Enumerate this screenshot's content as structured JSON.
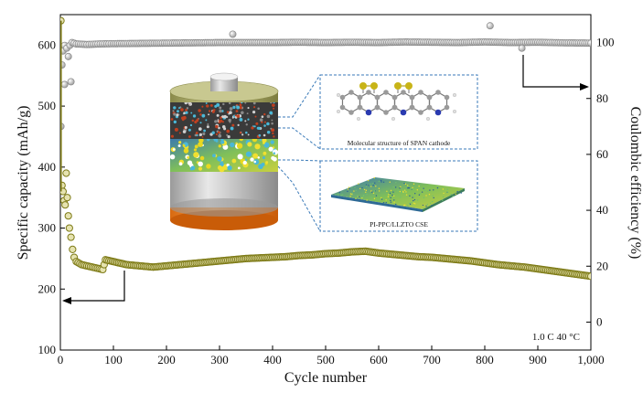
{
  "chart_data": {
    "type": "scatter",
    "xlabel": "Cycle number",
    "ylabel": "Specific capacity (mAh/g)",
    "y2label": "Coulombic efficiency (%)",
    "xlim": [
      0,
      1000
    ],
    "ylim": [
      100,
      650
    ],
    "y2lim": [
      -10,
      110
    ],
    "x_ticks": [
      "0",
      "100",
      "200",
      "300",
      "400",
      "500",
      "600",
      "700",
      "800",
      "900",
      "1,000"
    ],
    "y_ticks": [
      "100",
      "200",
      "300",
      "400",
      "500",
      "600"
    ],
    "y2_ticks": [
      "0",
      "20",
      "40",
      "60",
      "80",
      "100"
    ],
    "condition": "1.0 C 40 °C",
    "series": [
      {
        "metric": "capacity",
        "axis": "left",
        "color": "#7d7a16",
        "values": [
          [
            1,
            640
          ],
          [
            3,
            370
          ],
          [
            5,
            360
          ],
          [
            7,
            345
          ],
          [
            9,
            338
          ],
          [
            11,
            390
          ],
          [
            13,
            350
          ],
          [
            15,
            320
          ],
          [
            17,
            300
          ],
          [
            20,
            285
          ],
          [
            23,
            265
          ],
          [
            26,
            252
          ],
          [
            30,
            245
          ],
          [
            40,
            240
          ],
          [
            50,
            238
          ],
          [
            60,
            236
          ],
          [
            70,
            234
          ],
          [
            80,
            232
          ],
          [
            85,
            248
          ],
          [
            95,
            246
          ],
          [
            110,
            243
          ],
          [
            125,
            240
          ],
          [
            150,
            238
          ],
          [
            175,
            236
          ],
          [
            200,
            238
          ],
          [
            225,
            240
          ],
          [
            250,
            242
          ],
          [
            275,
            244
          ],
          [
            300,
            246
          ],
          [
            325,
            248
          ],
          [
            350,
            250
          ],
          [
            375,
            251
          ],
          [
            400,
            252
          ],
          [
            425,
            253
          ],
          [
            450,
            255
          ],
          [
            475,
            256
          ],
          [
            500,
            258
          ],
          [
            525,
            259
          ],
          [
            550,
            261
          ],
          [
            575,
            262
          ],
          [
            600,
            259
          ],
          [
            625,
            257
          ],
          [
            650,
            255
          ],
          [
            675,
            253
          ],
          [
            700,
            252
          ],
          [
            725,
            250
          ],
          [
            750,
            248
          ],
          [
            775,
            246
          ],
          [
            800,
            243
          ],
          [
            825,
            240
          ],
          [
            850,
            238
          ],
          [
            875,
            236
          ],
          [
            900,
            233
          ],
          [
            925,
            230
          ],
          [
            950,
            227
          ],
          [
            975,
            224
          ],
          [
            1000,
            221
          ]
        ]
      },
      {
        "metric": "coulombic_efficiency",
        "axis": "right",
        "color": "#a9a9a9",
        "values": [
          [
            1,
            70
          ],
          [
            3,
            92
          ],
          [
            5,
            97
          ],
          [
            8,
            99
          ],
          [
            12,
            98
          ],
          [
            15,
            95
          ],
          [
            18,
            99
          ],
          [
            22,
            100
          ],
          [
            30,
            99.5
          ],
          [
            50,
            99.3
          ],
          [
            75,
            99.5
          ],
          [
            100,
            99.6
          ],
          [
            150,
            99.7
          ],
          [
            200,
            99.8
          ],
          [
            250,
            99.9
          ],
          [
            300,
            100
          ],
          [
            350,
            100
          ],
          [
            400,
            100
          ],
          [
            450,
            100.1
          ],
          [
            500,
            100
          ],
          [
            550,
            100.1
          ],
          [
            600,
            100
          ],
          [
            650,
            100.2
          ],
          [
            700,
            100.1
          ],
          [
            750,
            100
          ],
          [
            800,
            100.2
          ],
          [
            850,
            100
          ],
          [
            900,
            100.1
          ],
          [
            950,
            99.9
          ],
          [
            1000,
            99.8
          ]
        ],
        "outliers": [
          [
            8,
            85
          ],
          [
            20,
            86
          ],
          [
            325,
            103
          ],
          [
            810,
            106
          ],
          [
            870,
            98
          ]
        ]
      }
    ],
    "inset": {
      "molecule_caption": "Molecular structure of SPAN cathode",
      "electrolyte_caption": "PI-PPC/LLZTO CSE"
    }
  }
}
